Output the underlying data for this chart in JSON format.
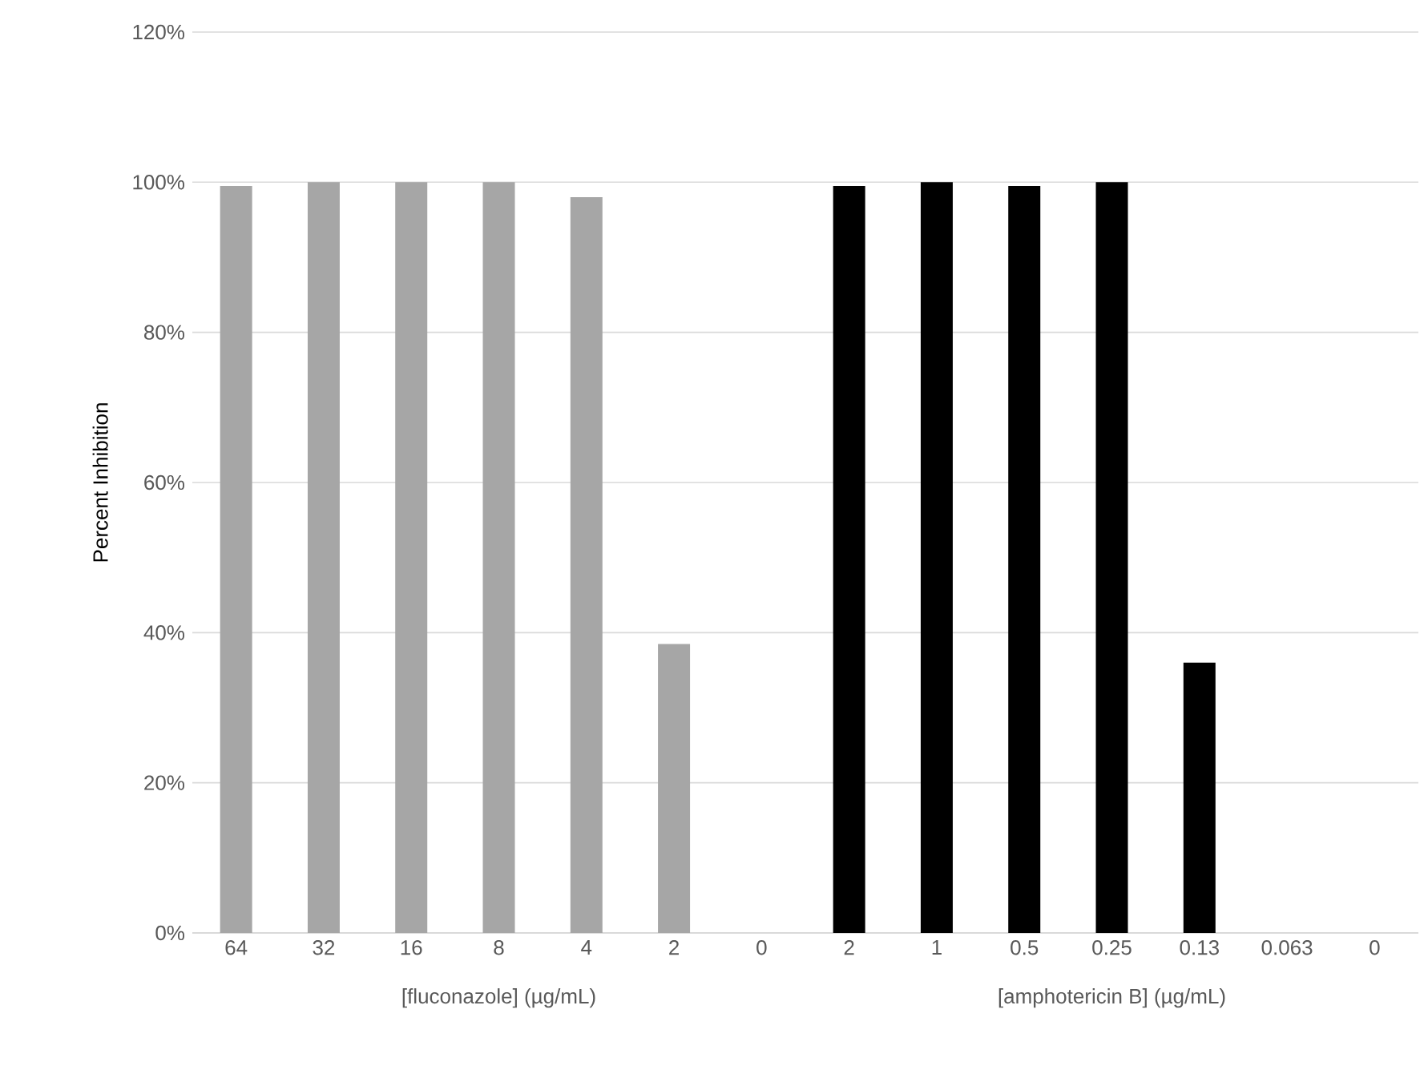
{
  "chart_data": {
    "type": "bar",
    "ylabel": "Percent Inhibition",
    "categories": [
      "64",
      "32",
      "16",
      "8",
      "4",
      "2",
      "0",
      "2",
      "1",
      "0.5",
      "0.25",
      "0.13",
      "0.063",
      "0"
    ],
    "values": [
      99.5,
      100,
      100,
      100,
      98,
      38.5,
      0,
      99.5,
      100,
      99.5,
      100,
      36,
      0,
      0
    ],
    "colors": [
      "#a6a6a6",
      "#a6a6a6",
      "#a6a6a6",
      "#a6a6a6",
      "#a6a6a6",
      "#a6a6a6",
      "#a6a6a6",
      "#000000",
      "#000000",
      "#000000",
      "#000000",
      "#000000",
      "#000000",
      "#000000"
    ],
    "ylim": [
      0,
      120
    ],
    "yticks": [
      {
        "value": 0,
        "label": "0%"
      },
      {
        "value": 20,
        "label": "20%"
      },
      {
        "value": 40,
        "label": "40%"
      },
      {
        "value": 60,
        "label": "60%"
      },
      {
        "value": 80,
        "label": "80%"
      },
      {
        "value": 100,
        "label": "100%"
      },
      {
        "value": 120,
        "label": "120%"
      }
    ],
    "grid": "y",
    "annotations": [
      "[fluconazole] (µg/mL)",
      "[amphotericin B] (µg/mL)"
    ]
  }
}
